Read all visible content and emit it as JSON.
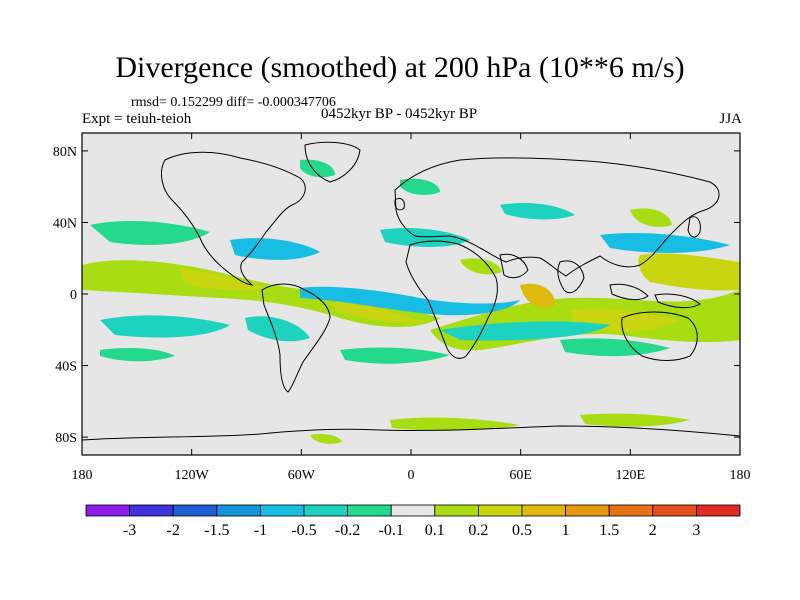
{
  "title": "Divergence (smoothed) at 200 hPa (10**6 m/s)",
  "stats": "rmsd= 0.152299 diff= -0.000347706",
  "experiment": "Expt = teiuh-teioh",
  "period": "0452kyr BP - 0452kyr BP",
  "season": "JJA",
  "y_axis": {
    "ticks": [
      {
        "label": "80N",
        "lat": 80
      },
      {
        "label": "40N",
        "lat": 40
      },
      {
        "label": "0",
        "lat": 0
      },
      {
        "label": "40S",
        "lat": -40
      },
      {
        "label": "80S",
        "lat": -80
      }
    ]
  },
  "x_axis": {
    "ticks": [
      {
        "label": "180",
        "lon": -180
      },
      {
        "label": "120W",
        "lon": -120
      },
      {
        "label": "60W",
        "lon": -60
      },
      {
        "label": "0",
        "lon": 0
      },
      {
        "label": "60E",
        "lon": 60
      },
      {
        "label": "120E",
        "lon": 120
      },
      {
        "label": "180",
        "lon": 180
      }
    ]
  },
  "colorbar": {
    "colors": [
      "#8c1de8",
      "#3e32d9",
      "#1f5fd3",
      "#1594dc",
      "#17bde3",
      "#1ed2c0",
      "#25d98c",
      "#e6e6e6",
      "#a7dd12",
      "#c8d50f",
      "#e0b80e",
      "#e49810",
      "#e57216",
      "#e24f1c",
      "#dd2a22"
    ],
    "labels": [
      "-3",
      "-2",
      "-1.5",
      "-1",
      "-0.5",
      "-0.2",
      "-0.1",
      "0.1",
      "0.2",
      "0.5",
      "1",
      "1.5",
      "2",
      "3"
    ]
  },
  "colors": {
    "ocean_background": "#e6e6e6",
    "coastline": "#000000"
  }
}
